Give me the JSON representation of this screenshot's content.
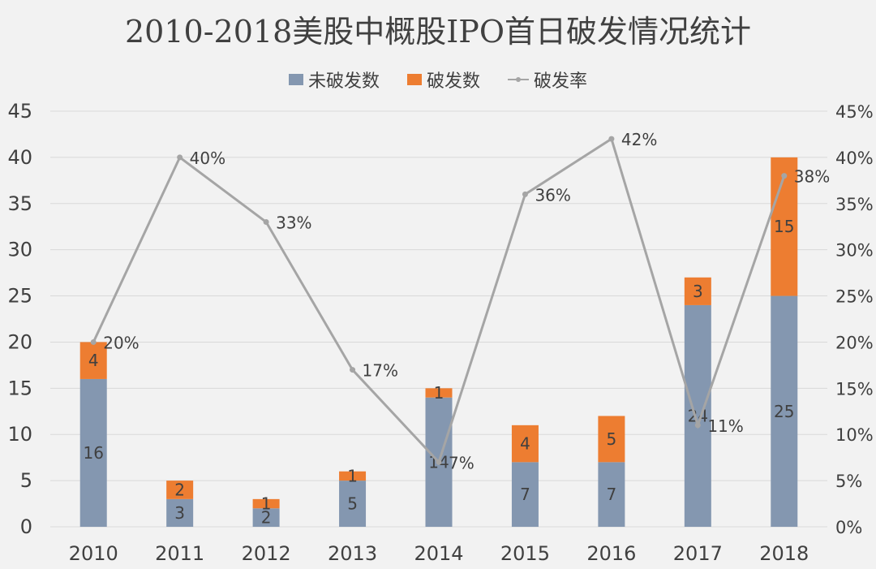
{
  "title": "2010-2018美股中概股IPO首日破发情况统计",
  "legend": {
    "unbroken": "未破发数",
    "broken": "破发数",
    "rate": "破发率"
  },
  "colors": {
    "unbroken": "#8497b0",
    "broken": "#ed7d31",
    "rate": "#a5a5a5",
    "text": "#404040",
    "grid": "#d9d9d9"
  },
  "chart_data": {
    "type": "bar",
    "stacked": true,
    "categories": [
      "2010",
      "2011",
      "2012",
      "2013",
      "2014",
      "2015",
      "2016",
      "2017",
      "2018"
    ],
    "series": [
      {
        "name": "未破发数",
        "type": "bar",
        "axis": "left",
        "values": [
          16,
          3,
          2,
          5,
          14,
          7,
          7,
          24,
          25
        ]
      },
      {
        "name": "破发数",
        "type": "bar",
        "axis": "left",
        "values": [
          4,
          2,
          1,
          1,
          1,
          4,
          5,
          3,
          15
        ]
      },
      {
        "name": "破发率",
        "type": "line",
        "axis": "right",
        "values": [
          20,
          40,
          33,
          17,
          7,
          36,
          42,
          11,
          38
        ],
        "labels": [
          "20%",
          "40%",
          "33%",
          "17%",
          "7%",
          "36%",
          "42%",
          "11%",
          "38%"
        ]
      }
    ],
    "y_left": {
      "min": 0,
      "max": 45,
      "step": 5,
      "ticks": [
        "0",
        "5",
        "10",
        "15",
        "20",
        "25",
        "30",
        "35",
        "40",
        "45"
      ]
    },
    "y_right": {
      "min": 0,
      "max": 45,
      "step": 5,
      "ticks": [
        "0%",
        "5%",
        "10%",
        "15%",
        "20%",
        "25%",
        "30%",
        "35%",
        "40%",
        "45%"
      ]
    },
    "grid": true,
    "legend_position": "top"
  }
}
